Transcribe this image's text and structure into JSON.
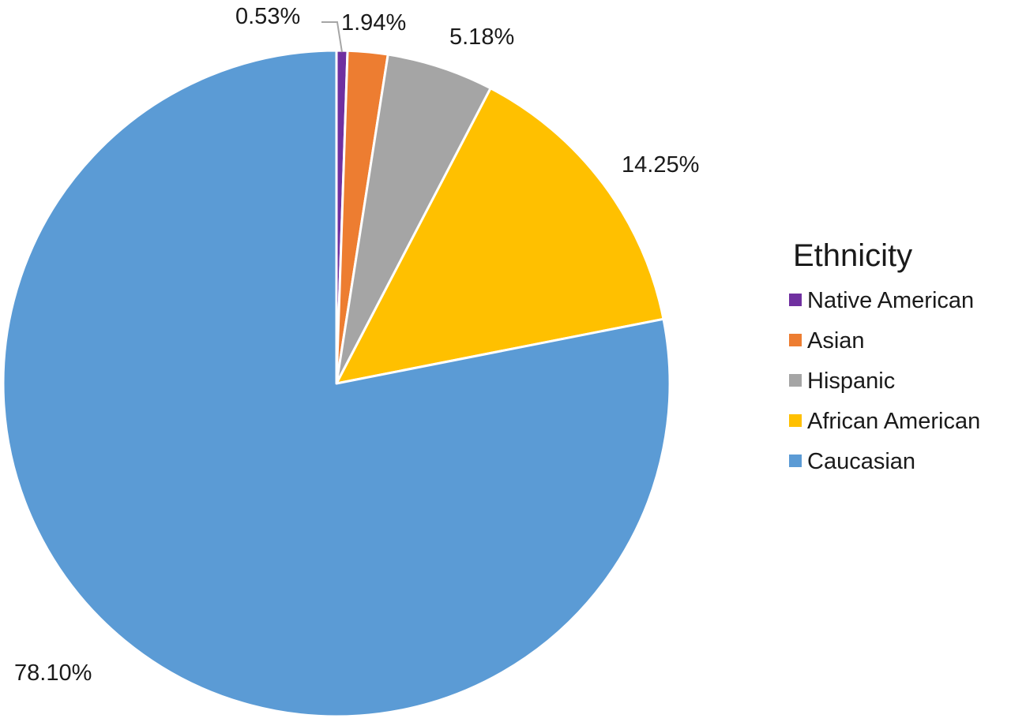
{
  "chart_data": {
    "type": "pie",
    "legend_title": "Ethnicity",
    "legend_position": "right",
    "start_angle": "12 o'clock",
    "direction": "clockwise",
    "categories": [
      "Native American",
      "Asian",
      "Hispanic",
      "African American",
      "Caucasian"
    ],
    "values": [
      0.53,
      1.94,
      5.18,
      14.25,
      78.1
    ],
    "labels": [
      "0.53%",
      "1.94%",
      "5.18%",
      "14.25%",
      "78.10%"
    ],
    "colors": [
      "#7030A0",
      "#ED7D31",
      "#A5A5A5",
      "#FFC000",
      "#5B9BD5"
    ]
  }
}
